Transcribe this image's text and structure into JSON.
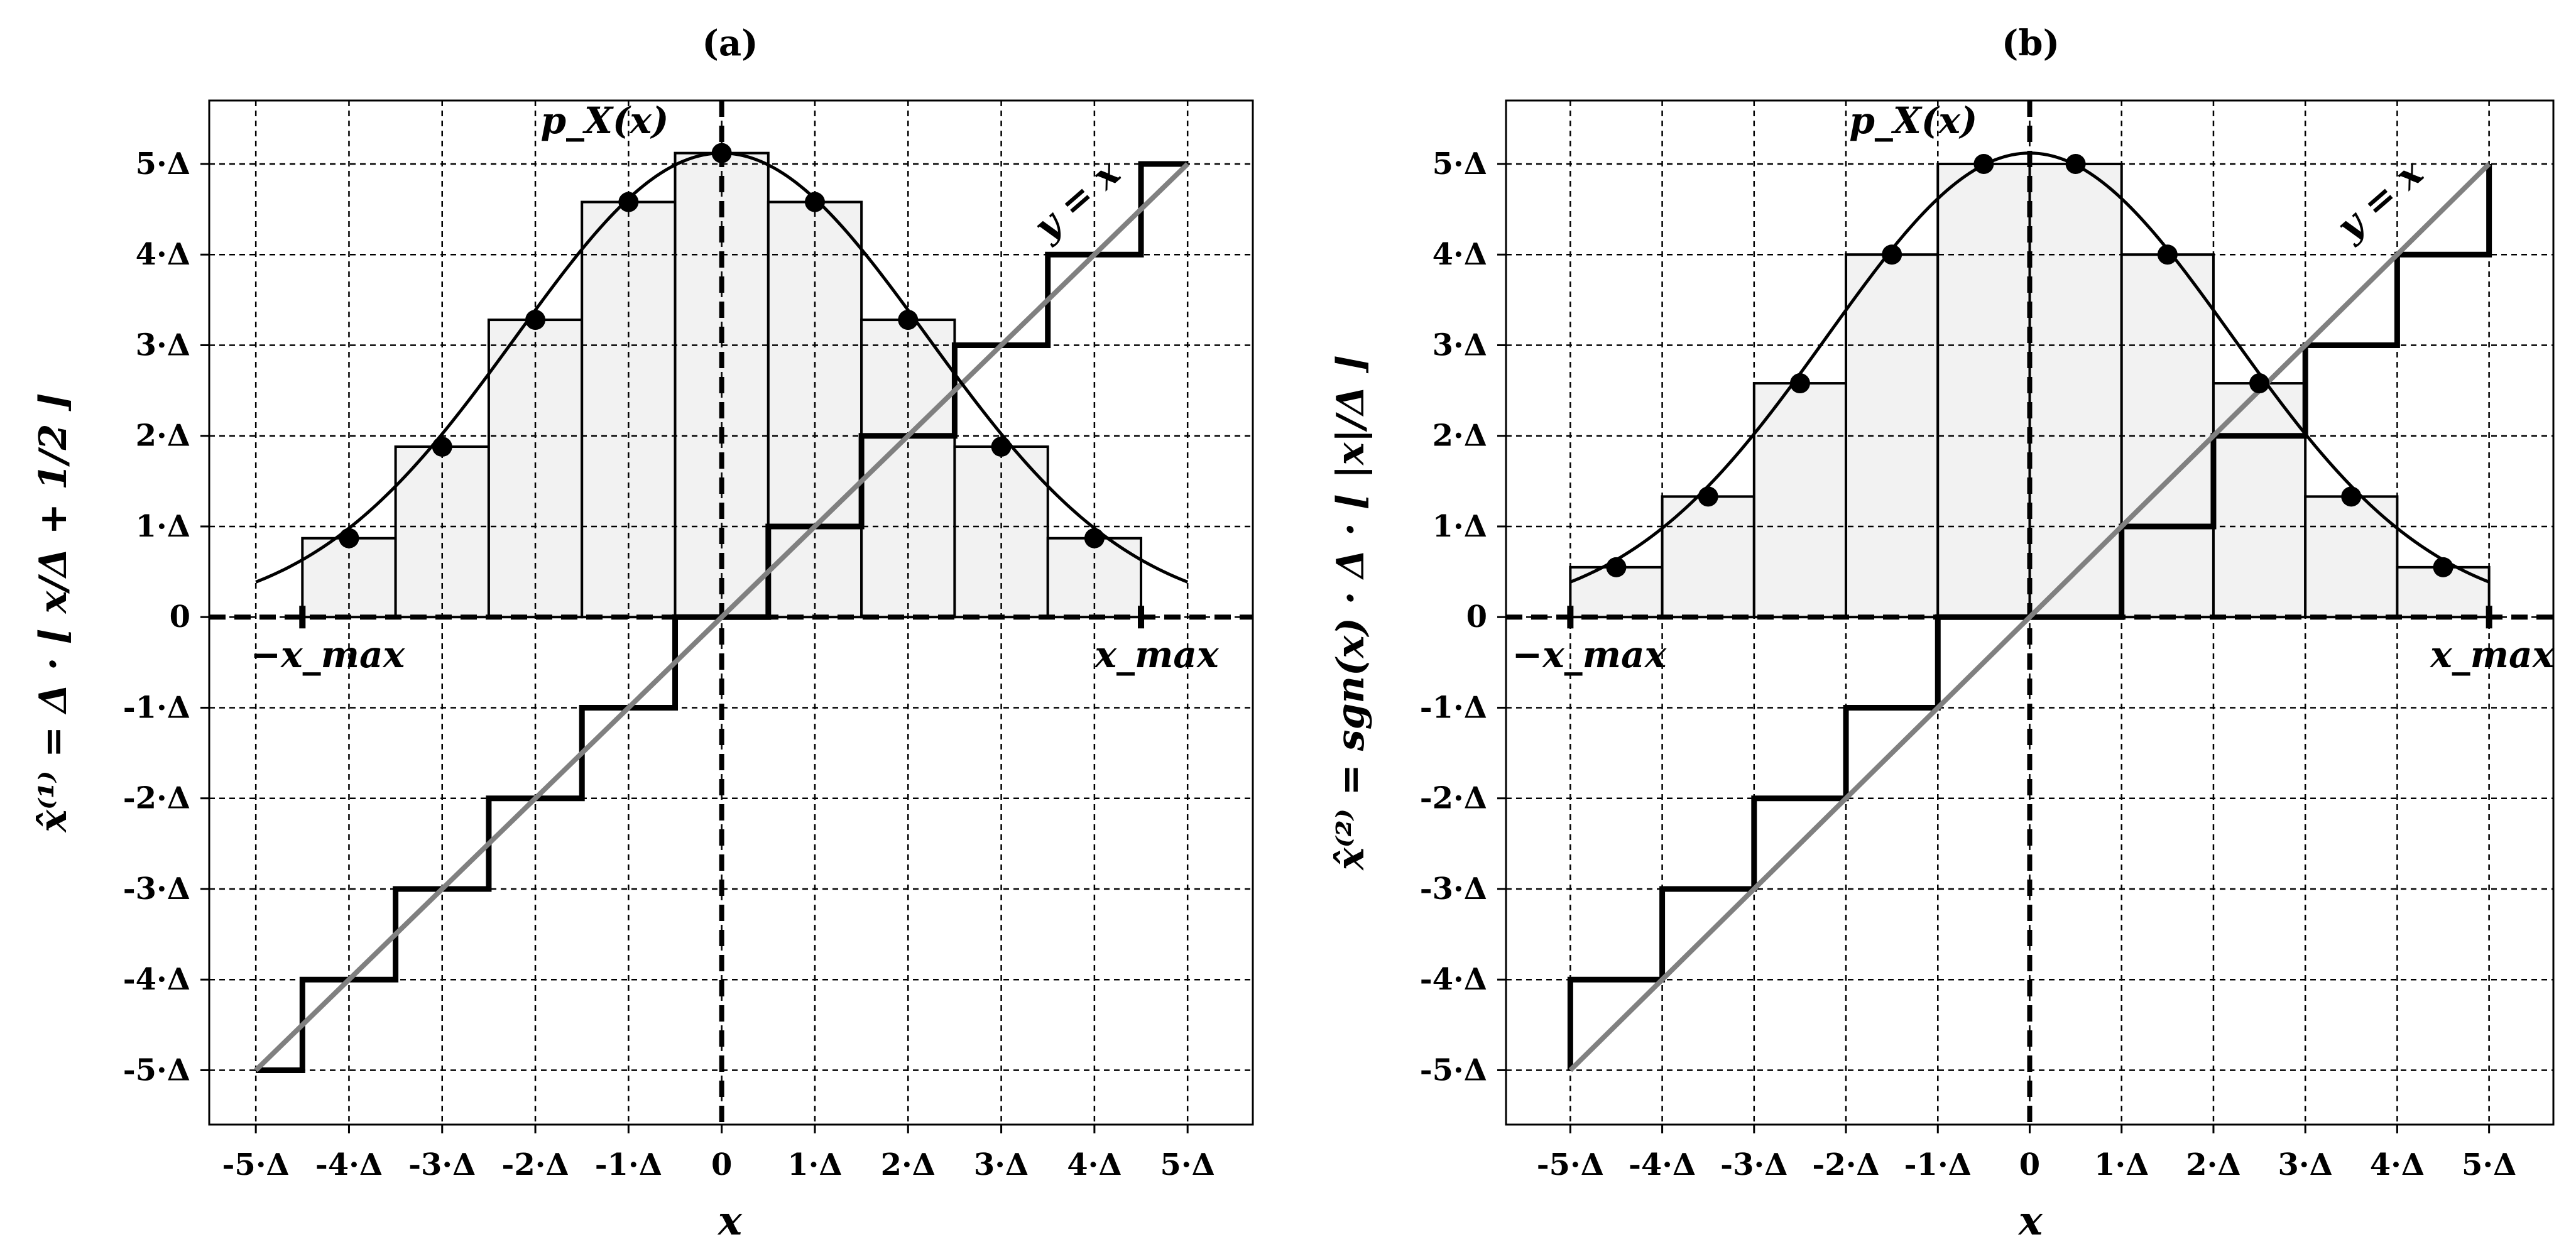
{
  "colors": {
    "stair": "#000000",
    "identity": "#808080",
    "bar_fill": "#f2f2f2",
    "bar_edge": "#000000",
    "curve": "#000000",
    "grid": "#000000"
  },
  "chart_data": [
    {
      "type": "line",
      "title": "(a)",
      "xlabel": "x",
      "ylabel": "x̂⁽¹⁾ = Δ · ⌊ x/Δ + 1/2 ⌋",
      "xlim": [
        -5.5,
        5.7
      ],
      "ylim": [
        -5.6,
        5.7
      ],
      "grid": true,
      "x_ticks": [
        -5,
        -4,
        -3,
        -2,
        -1,
        0,
        1,
        2,
        3,
        4,
        5
      ],
      "x_tick_labels": [
        "-5·Δ",
        "-4·Δ",
        "-3·Δ",
        "-2·Δ",
        "-1·Δ",
        "0",
        "1·Δ",
        "2·Δ",
        "3·Δ",
        "4·Δ",
        "5·Δ"
      ],
      "y_ticks": [
        -5,
        -4,
        -3,
        -2,
        -1,
        0,
        1,
        2,
        3,
        4,
        5
      ],
      "y_tick_labels": [
        "-5·Δ",
        "-4·Δ",
        "-3·Δ",
        "-2·Δ",
        "-1·Δ",
        "0",
        "1·Δ",
        "2·Δ",
        "3·Δ",
        "4·Δ",
        "5·Δ"
      ],
      "pdf_label": "p_X(x)",
      "identity_label": "y = x",
      "xmax_label": "x_max",
      "neg_xmax_label": "−x_max",
      "xmax_value": 4.5,
      "quantizer": "round",
      "quantizer_range": [
        -5,
        5
      ],
      "bars": {
        "centers": [
          -4,
          -3,
          -2,
          -1,
          0,
          1,
          2,
          3,
          4
        ],
        "width": 1,
        "heights": [
          0.87,
          1.88,
          3.28,
          4.58,
          5.12,
          4.58,
          3.28,
          1.88,
          0.87
        ]
      },
      "pdf_curve": {
        "peak": 5.12,
        "sigma": 2.2,
        "x_range": [
          -5,
          5
        ]
      },
      "pdf_points": {
        "x": [
          -4,
          -3,
          -2,
          -1,
          0,
          1,
          2,
          3,
          4
        ],
        "y": [
          0.87,
          1.88,
          3.28,
          4.58,
          5.12,
          4.58,
          3.28,
          1.88,
          0.87
        ]
      },
      "identity_range": [
        -5,
        5
      ]
    },
    {
      "type": "line",
      "title": "(b)",
      "xlabel": "x",
      "ylabel": "x̂⁽²⁾ = sgn(x) · Δ · ⌊ |x|/Δ ⌋",
      "xlim": [
        -5.7,
        5.7
      ],
      "ylim": [
        -5.6,
        5.7
      ],
      "grid": true,
      "x_ticks": [
        -5,
        -4,
        -3,
        -2,
        -1,
        0,
        1,
        2,
        3,
        4,
        5
      ],
      "x_tick_labels": [
        "-5·Δ",
        "-4·Δ",
        "-3·Δ",
        "-2·Δ",
        "-1·Δ",
        "0",
        "1·Δ",
        "2·Δ",
        "3·Δ",
        "4·Δ",
        "5·Δ"
      ],
      "y_ticks": [
        -5,
        -4,
        -3,
        -2,
        -1,
        0,
        1,
        2,
        3,
        4,
        5
      ],
      "y_tick_labels": [
        "-5·Δ",
        "-4·Δ",
        "-3·Δ",
        "-2·Δ",
        "-1·Δ",
        "0",
        "1·Δ",
        "2·Δ",
        "3·Δ",
        "4·Δ",
        "5·Δ"
      ],
      "pdf_label": "p_X(x)",
      "identity_label": "y = x",
      "xmax_label": "x_max",
      "neg_xmax_label": "−x_max",
      "xmax_value": 5,
      "quantizer": "truncate",
      "quantizer_range": [
        -5,
        5
      ],
      "bars": {
        "centers": [
          -4.5,
          -3.5,
          -2.5,
          -1.5,
          -0.5,
          0.5,
          1.5,
          2.5,
          3.5,
          4.5
        ],
        "width": 1,
        "heights": [
          0.55,
          1.33,
          2.58,
          4.0,
          5.0,
          5.0,
          4.0,
          2.58,
          1.33,
          0.55
        ]
      },
      "pdf_curve": {
        "peak": 5.12,
        "sigma": 2.2,
        "x_range": [
          -5,
          5
        ]
      },
      "pdf_points": {
        "x": [
          -4.5,
          -3.5,
          -2.5,
          -1.5,
          -0.5,
          0.5,
          1.5,
          2.5,
          3.5,
          4.5
        ],
        "y": [
          0.55,
          1.33,
          2.58,
          4.0,
          5.0,
          5.0,
          4.0,
          2.58,
          1.33,
          0.55
        ]
      },
      "identity_range": [
        -5,
        5
      ]
    }
  ]
}
